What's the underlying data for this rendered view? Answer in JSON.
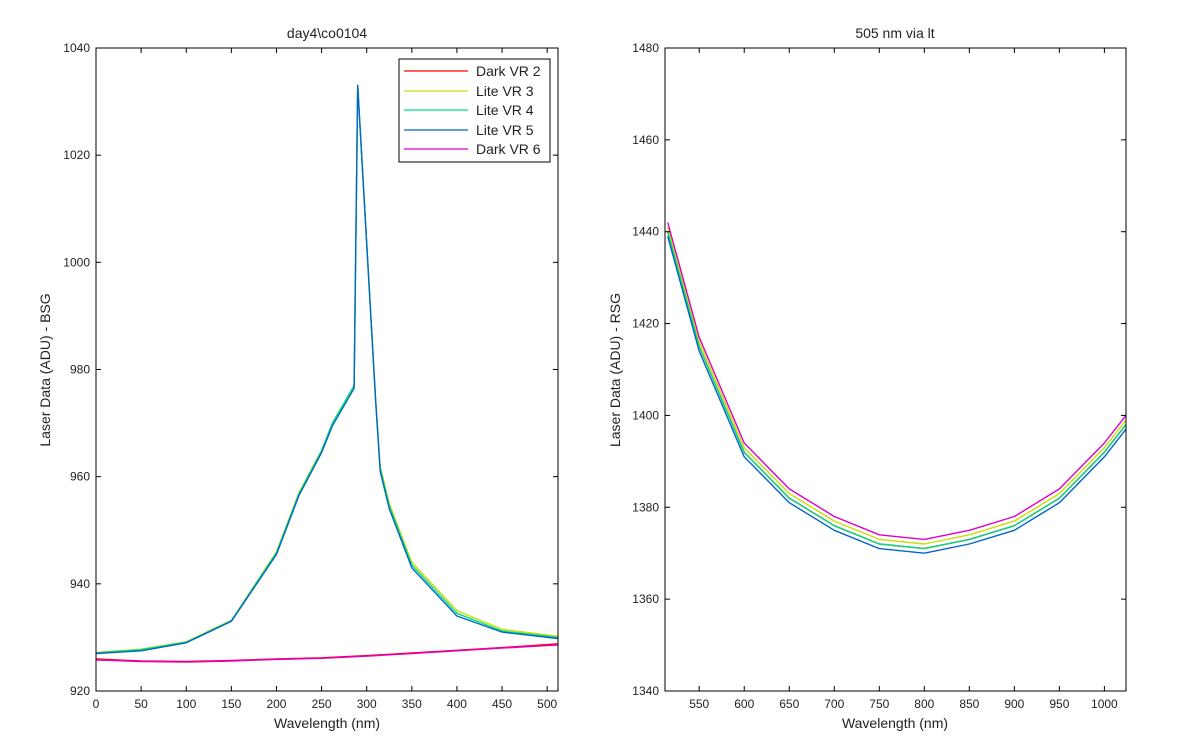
{
  "chart_data": [
    {
      "type": "line",
      "title": "day4\\co0104",
      "xlabel": "Wavelength (nm)",
      "ylabel": "Laser Data (ADU) - BSG",
      "xlim": [
        0,
        512
      ],
      "ylim": [
        920,
        1040
      ],
      "xticks": [
        "0",
        "50",
        "100",
        "150",
        "200",
        "250",
        "300",
        "350",
        "400",
        "450",
        "500"
      ],
      "yticks": [
        "920",
        "940",
        "960",
        "980",
        "1000",
        "1020",
        "1040"
      ],
      "legend_position": "top-right",
      "series": [
        {
          "name": "Dark VR 2",
          "color": "#ff0000",
          "x": [
            0,
            50,
            100,
            150,
            200,
            250,
            300,
            350,
            400,
            450,
            512
          ],
          "y": [
            926,
            925.6,
            925.5,
            925.7,
            926,
            926.2,
            926.6,
            927.1,
            927.6,
            928.1,
            928.8
          ]
        },
        {
          "name": "Lite VR 3",
          "color": "#ccdd00",
          "x": [
            0,
            50,
            100,
            150,
            200,
            225,
            250,
            262,
            286,
            290,
            310,
            315,
            325,
            350,
            400,
            450,
            512
          ],
          "y": [
            927.2,
            927.8,
            929.2,
            933.2,
            946,
            957,
            965,
            970,
            977,
            1033,
            974,
            962,
            955,
            944,
            935,
            931.5,
            930.2
          ]
        },
        {
          "name": "Lite VR 4",
          "color": "#00dd88",
          "x": [
            0,
            50,
            100,
            150,
            200,
            225,
            250,
            262,
            286,
            290,
            310,
            315,
            325,
            350,
            400,
            450,
            512
          ],
          "y": [
            927.1,
            927.7,
            929.1,
            933.1,
            945.8,
            956.8,
            964.8,
            970,
            977,
            1033,
            974,
            961.5,
            954.5,
            943.5,
            934.5,
            931.2,
            930
          ]
        },
        {
          "name": "Lite VR 5",
          "color": "#0066cc",
          "x": [
            0,
            50,
            100,
            150,
            200,
            225,
            250,
            262,
            286,
            290,
            310,
            315,
            325,
            350,
            400,
            450,
            512
          ],
          "y": [
            927,
            927.5,
            929,
            933,
            945.5,
            956.5,
            964.5,
            969.5,
            976.5,
            1033,
            974,
            961,
            954,
            943,
            934,
            931,
            929.8
          ]
        },
        {
          "name": "Dark VR 6",
          "color": "#dd00cc",
          "x": [
            0,
            50,
            100,
            150,
            200,
            250,
            300,
            350,
            400,
            450,
            512
          ],
          "y": [
            925.8,
            925.5,
            925.4,
            925.6,
            925.9,
            926.1,
            926.5,
            927,
            927.5,
            928,
            928.6
          ]
        }
      ]
    },
    {
      "type": "line",
      "title": "505 nm via lt",
      "xlabel": "Wavelength (nm)",
      "ylabel": "Laser Data (ADU) - RSG",
      "xlim": [
        512,
        1024
      ],
      "ylim": [
        1340,
        1480
      ],
      "xticks": [
        "550",
        "600",
        "650",
        "700",
        "750",
        "800",
        "850",
        "900",
        "950",
        "1000"
      ],
      "yticks": [
        "1340",
        "1360",
        "1380",
        "1400",
        "1420",
        "1440",
        "1460",
        "1480"
      ],
      "series": [
        {
          "name": "Dark VR 2",
          "color": "#ff0000",
          "x": [
            515,
            550,
            600,
            650,
            700,
            750,
            800,
            850,
            900,
            950,
            1000,
            1024
          ],
          "y": [
            1440,
            1415,
            1392,
            1382,
            1376,
            1372,
            1371,
            1373,
            1376,
            1382,
            1392,
            1398
          ]
        },
        {
          "name": "Lite VR 3",
          "color": "#ccdd00",
          "x": [
            515,
            550,
            600,
            650,
            700,
            750,
            800,
            850,
            900,
            950,
            1000,
            1024
          ],
          "y": [
            1441,
            1416,
            1393,
            1383,
            1377,
            1373,
            1372,
            1374,
            1377,
            1383,
            1393,
            1399
          ]
        },
        {
          "name": "Lite VR 4",
          "color": "#00dd88",
          "x": [
            515,
            550,
            600,
            650,
            700,
            750,
            800,
            850,
            900,
            950,
            1000,
            1024
          ],
          "y": [
            1440,
            1415,
            1392,
            1382,
            1376,
            1372,
            1371,
            1373,
            1376,
            1382,
            1392,
            1398
          ]
        },
        {
          "name": "Lite VR 5",
          "color": "#0066cc",
          "x": [
            515,
            550,
            600,
            650,
            700,
            750,
            800,
            850,
            900,
            950,
            1000,
            1024
          ],
          "y": [
            1439,
            1414,
            1391,
            1381,
            1375,
            1371,
            1370,
            1372,
            1375,
            1381,
            1391,
            1397
          ]
        },
        {
          "name": "Dark VR 6",
          "color": "#dd00cc",
          "x": [
            515,
            550,
            600,
            650,
            700,
            750,
            800,
            850,
            900,
            950,
            1000,
            1024
          ],
          "y": [
            1442,
            1417,
            1394,
            1384,
            1378,
            1374,
            1373,
            1375,
            1378,
            1384,
            1394,
            1400
          ]
        }
      ]
    }
  ]
}
